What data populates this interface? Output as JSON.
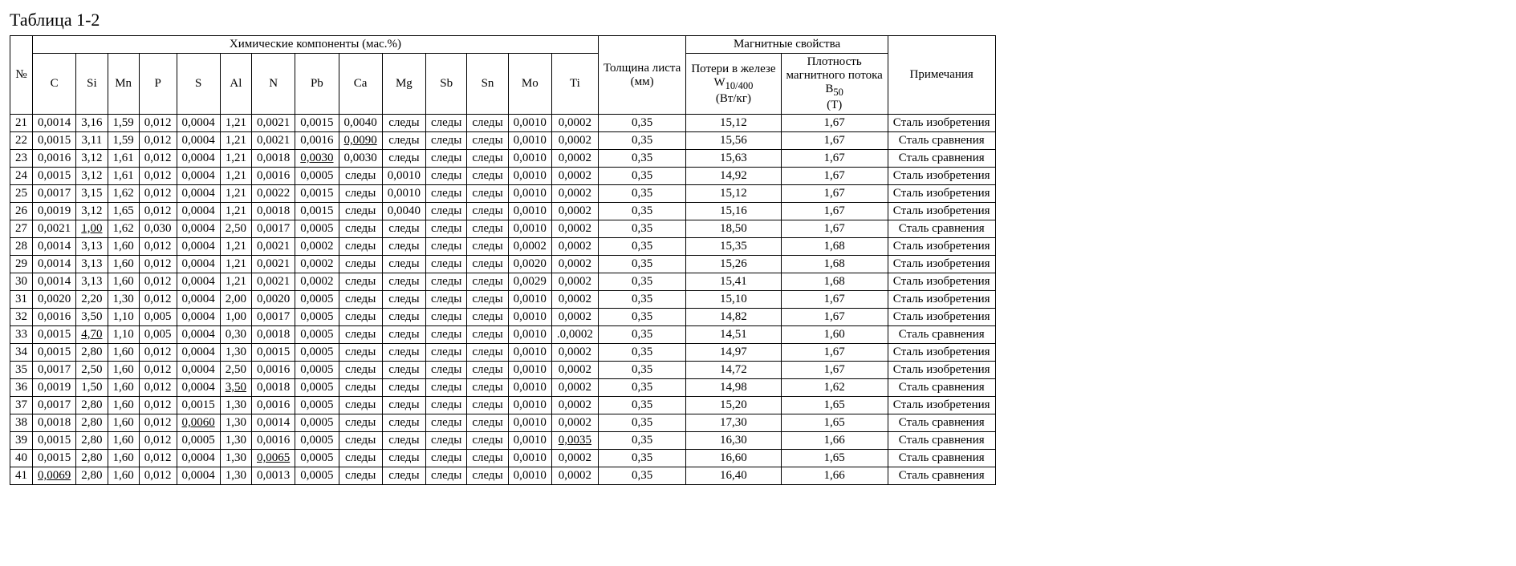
{
  "title": "Таблица 1-2",
  "headers": {
    "row_no": "№",
    "chem_group": "Химические компоненты (мас.%)",
    "magnetic_group": "Магнитные свойства",
    "thickness": "Толщина листа\n(мм)",
    "iron_loss_pre": "Потери в железе\nW",
    "iron_loss_sub": "10/400",
    "iron_loss_post": "\n(Вт/кг)",
    "flux_pre": "Плотность\nмагнитного потока\nB",
    "flux_sub": "50",
    "flux_post": "\n(Т)",
    "notes": "Примечания",
    "chem_cols": [
      "C",
      "Si",
      "Mn",
      "P",
      "S",
      "Al",
      "N",
      "Pb",
      "Ca",
      "Mg",
      "Sb",
      "Sn",
      "Mo",
      "Ti"
    ]
  },
  "underline_cells": {
    "22": [
      "Ca"
    ],
    "23": [
      "Pb"
    ],
    "27": [
      "Si"
    ],
    "33": [
      "Si"
    ],
    "36": [
      "Al"
    ],
    "38": [
      "S"
    ],
    "39": [
      "Ti"
    ],
    "40": [
      "N"
    ],
    "41": [
      "C"
    ]
  },
  "rows": [
    {
      "n": "21",
      "C": "0,0014",
      "Si": "3,16",
      "Mn": "1,59",
      "P": "0,012",
      "S": "0,0004",
      "Al": "1,21",
      "N": "0,0021",
      "Pb": "0,0015",
      "Ca": "0,0040",
      "Mg": "следы",
      "Sb": "следы",
      "Sn": "следы",
      "Mo": "0,0010",
      "Ti": "0,0002",
      "thk": "0,35",
      "loss": "15,12",
      "flux": "1,67",
      "note": "Сталь изобретения"
    },
    {
      "n": "22",
      "C": "0,0015",
      "Si": "3,11",
      "Mn": "1,59",
      "P": "0,012",
      "S": "0,0004",
      "Al": "1,21",
      "N": "0,0021",
      "Pb": "0,0016",
      "Ca": "0,0090",
      "Mg": "следы",
      "Sb": "следы",
      "Sn": "следы",
      "Mo": "0,0010",
      "Ti": "0,0002",
      "thk": "0,35",
      "loss": "15,56",
      "flux": "1,67",
      "note": "Сталь сравнения"
    },
    {
      "n": "23",
      "C": "0,0016",
      "Si": "3,12",
      "Mn": "1,61",
      "P": "0,012",
      "S": "0,0004",
      "Al": "1,21",
      "N": "0,0018",
      "Pb": "0,0030",
      "Ca": "0,0030",
      "Mg": "следы",
      "Sb": "следы",
      "Sn": "следы",
      "Mo": "0,0010",
      "Ti": "0,0002",
      "thk": "0,35",
      "loss": "15,63",
      "flux": "1,67",
      "note": "Сталь сравнения"
    },
    {
      "n": "24",
      "C": "0,0015",
      "Si": "3,12",
      "Mn": "1,61",
      "P": "0,012",
      "S": "0,0004",
      "Al": "1,21",
      "N": "0,0016",
      "Pb": "0,0005",
      "Ca": "следы",
      "Mg": "0,0010",
      "Sb": "следы",
      "Sn": "следы",
      "Mo": "0,0010",
      "Ti": "0,0002",
      "thk": "0,35",
      "loss": "14,92",
      "flux": "1,67",
      "note": "Сталь изобретения"
    },
    {
      "n": "25",
      "C": "0,0017",
      "Si": "3,15",
      "Mn": "1,62",
      "P": "0,012",
      "S": "0,0004",
      "Al": "1,21",
      "N": "0,0022",
      "Pb": "0,0015",
      "Ca": "следы",
      "Mg": "0,0010",
      "Sb": "следы",
      "Sn": "следы",
      "Mo": "0,0010",
      "Ti": "0,0002",
      "thk": "0,35",
      "loss": "15,12",
      "flux": "1,67",
      "note": "Сталь изобретения"
    },
    {
      "n": "26",
      "C": "0,0019",
      "Si": "3,12",
      "Mn": "1,65",
      "P": "0,012",
      "S": "0,0004",
      "Al": "1,21",
      "N": "0,0018",
      "Pb": "0,0015",
      "Ca": "следы",
      "Mg": "0,0040",
      "Sb": "следы",
      "Sn": "следы",
      "Mo": "0,0010",
      "Ti": "0,0002",
      "thk": "0,35",
      "loss": "15,16",
      "flux": "1,67",
      "note": "Сталь изобретения"
    },
    {
      "n": "27",
      "C": "0,0021",
      "Si": "1,00",
      "Mn": "1,62",
      "P": "0,030",
      "S": "0,0004",
      "Al": "2,50",
      "N": "0,0017",
      "Pb": "0,0005",
      "Ca": "следы",
      "Mg": "следы",
      "Sb": "следы",
      "Sn": "следы",
      "Mo": "0,0010",
      "Ti": "0,0002",
      "thk": "0,35",
      "loss": "18,50",
      "flux": "1,67",
      "note": "Сталь сравнения"
    },
    {
      "n": "28",
      "C": "0,0014",
      "Si": "3,13",
      "Mn": "1,60",
      "P": "0,012",
      "S": "0,0004",
      "Al": "1,21",
      "N": "0,0021",
      "Pb": "0,0002",
      "Ca": "следы",
      "Mg": "следы",
      "Sb": "следы",
      "Sn": "следы",
      "Mo": "0,0002",
      "Ti": "0,0002",
      "thk": "0,35",
      "loss": "15,35",
      "flux": "1,68",
      "note": "Сталь изобретения"
    },
    {
      "n": "29",
      "C": "0,0014",
      "Si": "3,13",
      "Mn": "1,60",
      "P": "0,012",
      "S": "0,0004",
      "Al": "1,21",
      "N": "0,0021",
      "Pb": "0,0002",
      "Ca": "следы",
      "Mg": "следы",
      "Sb": "следы",
      "Sn": "следы",
      "Mo": "0,0020",
      "Ti": "0,0002",
      "thk": "0,35",
      "loss": "15,26",
      "flux": "1,68",
      "note": "Сталь изобретения"
    },
    {
      "n": "30",
      "C": "0,0014",
      "Si": "3,13",
      "Mn": "1,60",
      "P": "0,012",
      "S": "0,0004",
      "Al": "1,21",
      "N": "0,0021",
      "Pb": "0,0002",
      "Ca": "следы",
      "Mg": "следы",
      "Sb": "следы",
      "Sn": "следы",
      "Mo": "0,0029",
      "Ti": "0,0002",
      "thk": "0,35",
      "loss": "15,41",
      "flux": "1,68",
      "note": "Сталь изобретения"
    },
    {
      "n": "31",
      "C": "0,0020",
      "Si": "2,20",
      "Mn": "1,30",
      "P": "0,012",
      "S": "0,0004",
      "Al": "2,00",
      "N": "0,0020",
      "Pb": "0,0005",
      "Ca": "следы",
      "Mg": "следы",
      "Sb": "следы",
      "Sn": "следы",
      "Mo": "0,0010",
      "Ti": "0,0002",
      "thk": "0,35",
      "loss": "15,10",
      "flux": "1,67",
      "note": "Сталь изобретения"
    },
    {
      "n": "32",
      "C": "0,0016",
      "Si": "3,50",
      "Mn": "1,10",
      "P": "0,005",
      "S": "0,0004",
      "Al": "1,00",
      "N": "0,0017",
      "Pb": "0,0005",
      "Ca": "следы",
      "Mg": "следы",
      "Sb": "следы",
      "Sn": "следы",
      "Mo": "0,0010",
      "Ti": "0,0002",
      "thk": "0,35",
      "loss": "14,82",
      "flux": "1,67",
      "note": "Сталь изобретения"
    },
    {
      "n": "33",
      "C": "0,0015",
      "Si": "4,70",
      "Mn": "1,10",
      "P": "0,005",
      "S": "0,0004",
      "Al": "0,30",
      "N": "0,0018",
      "Pb": "0,0005",
      "Ca": "следы",
      "Mg": "следы",
      "Sb": "следы",
      "Sn": "следы",
      "Mo": "0,0010",
      "Ti": ".0,0002",
      "thk": "0,35",
      "loss": "14,51",
      "flux": "1,60",
      "note": "Сталь сравнения"
    },
    {
      "n": "34",
      "C": "0,0015",
      "Si": "2,80",
      "Mn": "1,60",
      "P": "0,012",
      "S": "0,0004",
      "Al": "1,30",
      "N": "0,0015",
      "Pb": "0,0005",
      "Ca": "следы",
      "Mg": "следы",
      "Sb": "следы",
      "Sn": "следы",
      "Mo": "0,0010",
      "Ti": "0,0002",
      "thk": "0,35",
      "loss": "14,97",
      "flux": "1,67",
      "note": "Сталь изобретения"
    },
    {
      "n": "35",
      "C": "0,0017",
      "Si": "2,50",
      "Mn": "1,60",
      "P": "0,012",
      "S": "0,0004",
      "Al": "2,50",
      "N": "0,0016",
      "Pb": "0,0005",
      "Ca": "следы",
      "Mg": "следы",
      "Sb": "следы",
      "Sn": "следы",
      "Mo": "0,0010",
      "Ti": "0,0002",
      "thk": "0,35",
      "loss": "14,72",
      "flux": "1,67",
      "note": "Сталь изобретения"
    },
    {
      "n": "36",
      "C": "0,0019",
      "Si": "1,50",
      "Mn": "1,60",
      "P": "0,012",
      "S": "0,0004",
      "Al": "3,50",
      "N": "0,0018",
      "Pb": "0,0005",
      "Ca": "следы",
      "Mg": "следы",
      "Sb": "следы",
      "Sn": "следы",
      "Mo": "0,0010",
      "Ti": "0,0002",
      "thk": "0,35",
      "loss": "14,98",
      "flux": "1,62",
      "note": "Сталь сравнения"
    },
    {
      "n": "37",
      "C": "0,0017",
      "Si": "2,80",
      "Mn": "1,60",
      "P": "0,012",
      "S": "0,0015",
      "Al": "1,30",
      "N": "0,0016",
      "Pb": "0,0005",
      "Ca": "следы",
      "Mg": "следы",
      "Sb": "следы",
      "Sn": "следы",
      "Mo": "0,0010",
      "Ti": "0,0002",
      "thk": "0,35",
      "loss": "15,20",
      "flux": "1,65",
      "note": "Сталь изобретения"
    },
    {
      "n": "38",
      "C": "0,0018",
      "Si": "2,80",
      "Mn": "1,60",
      "P": "0,012",
      "S": "0,0060",
      "Al": "1,30",
      "N": "0,0014",
      "Pb": "0,0005",
      "Ca": "следы",
      "Mg": "следы",
      "Sb": "следы",
      "Sn": "следы",
      "Mo": "0,0010",
      "Ti": "0,0002",
      "thk": "0,35",
      "loss": "17,30",
      "flux": "1,65",
      "note": "Сталь сравнения"
    },
    {
      "n": "39",
      "C": "0,0015",
      "Si": "2,80",
      "Mn": "1,60",
      "P": "0,012",
      "S": "0,0005",
      "Al": "1,30",
      "N": "0,0016",
      "Pb": "0,0005",
      "Ca": "следы",
      "Mg": "следы",
      "Sb": "следы",
      "Sn": "следы",
      "Mo": "0,0010",
      "Ti": "0,0035",
      "thk": "0,35",
      "loss": "16,30",
      "flux": "1,66",
      "note": "Сталь сравнения"
    },
    {
      "n": "40",
      "C": "0,0015",
      "Si": "2,80",
      "Mn": "1,60",
      "P": "0,012",
      "S": "0,0004",
      "Al": "1,30",
      "N": "0,0065",
      "Pb": "0,0005",
      "Ca": "следы",
      "Mg": "следы",
      "Sb": "следы",
      "Sn": "следы",
      "Mo": "0,0010",
      "Ti": "0,0002",
      "thk": "0,35",
      "loss": "16,60",
      "flux": "1,65",
      "note": "Сталь сравнения"
    },
    {
      "n": "41",
      "C": "0,0069",
      "Si": "2,80",
      "Mn": "1,60",
      "P": "0,012",
      "S": "0,0004",
      "Al": "1,30",
      "N": "0,0013",
      "Pb": "0,0005",
      "Ca": "следы",
      "Mg": "следы",
      "Sb": "следы",
      "Sn": "следы",
      "Mo": "0,0010",
      "Ti": "0,0002",
      "thk": "0,35",
      "loss": "16,40",
      "flux": "1,66",
      "note": "Сталь сравнения"
    }
  ]
}
